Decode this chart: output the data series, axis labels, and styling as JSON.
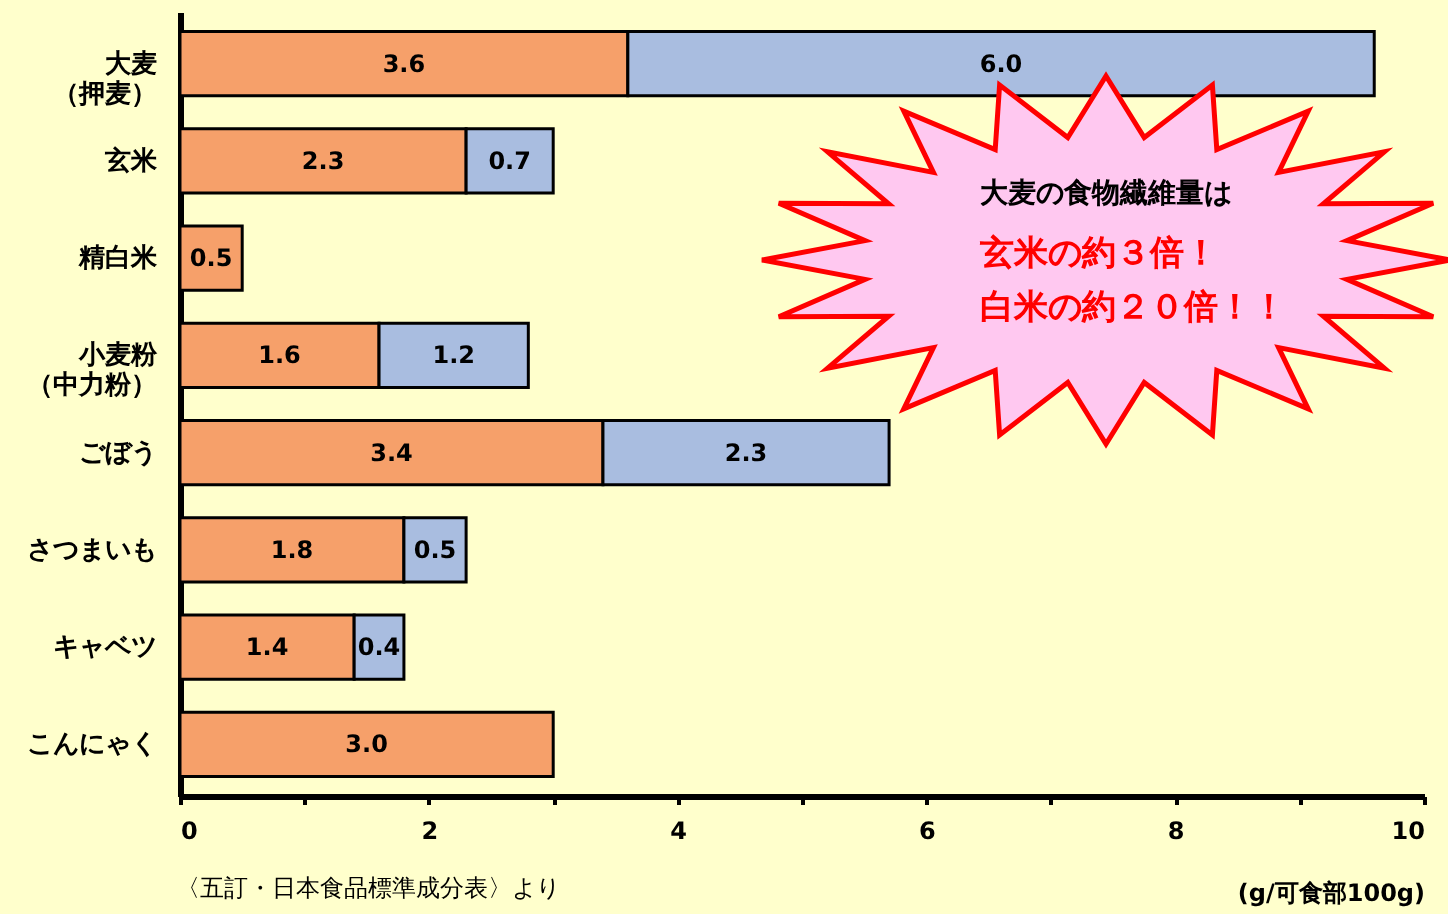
{
  "chart_data": {
    "type": "bar",
    "orientation": "horizontal",
    "stacked": true,
    "categories": [
      "大麦（押麦）",
      "玄米",
      "精白米",
      "小麦粉（中力粉）",
      "ごぼう",
      "さつまいも",
      "キャベツ",
      "こんにゃく"
    ],
    "series": [
      {
        "color": "#f6a06a",
        "values": [
          3.6,
          2.3,
          0.5,
          1.6,
          3.4,
          1.8,
          1.4,
          3.0
        ],
        "value_labels": [
          "3.6",
          "2.3",
          "0.5",
          "1.6",
          "3.4",
          "1.8",
          "1.4",
          "3.0"
        ]
      },
      {
        "color": "#a9bde0",
        "values": [
          6.0,
          0.7,
          null,
          1.2,
          2.3,
          0.5,
          0.4,
          null
        ],
        "value_labels": [
          "6.0",
          "0.7",
          null,
          "1.2",
          "2.3",
          "0.5",
          "0.4",
          null
        ]
      }
    ],
    "xlim": [
      0,
      10
    ],
    "xticks": [
      0,
      {
        "value": 1,
        "label": null
      },
      2,
      {
        "value": 3,
        "label": null
      },
      4,
      {
        "value": 5,
        "label": null
      },
      6,
      {
        "value": 7,
        "label": null
      },
      8,
      {
        "value": 9,
        "label": null
      },
      10
    ],
    "xlabel": "(g/可食部100g)",
    "annotations": [
      "大麦の食物繊維量は",
      "玄米の約３倍！",
      "白米の約２０倍！！",
      "〈五訂・日本食品標準成分表〉より"
    ]
  }
}
